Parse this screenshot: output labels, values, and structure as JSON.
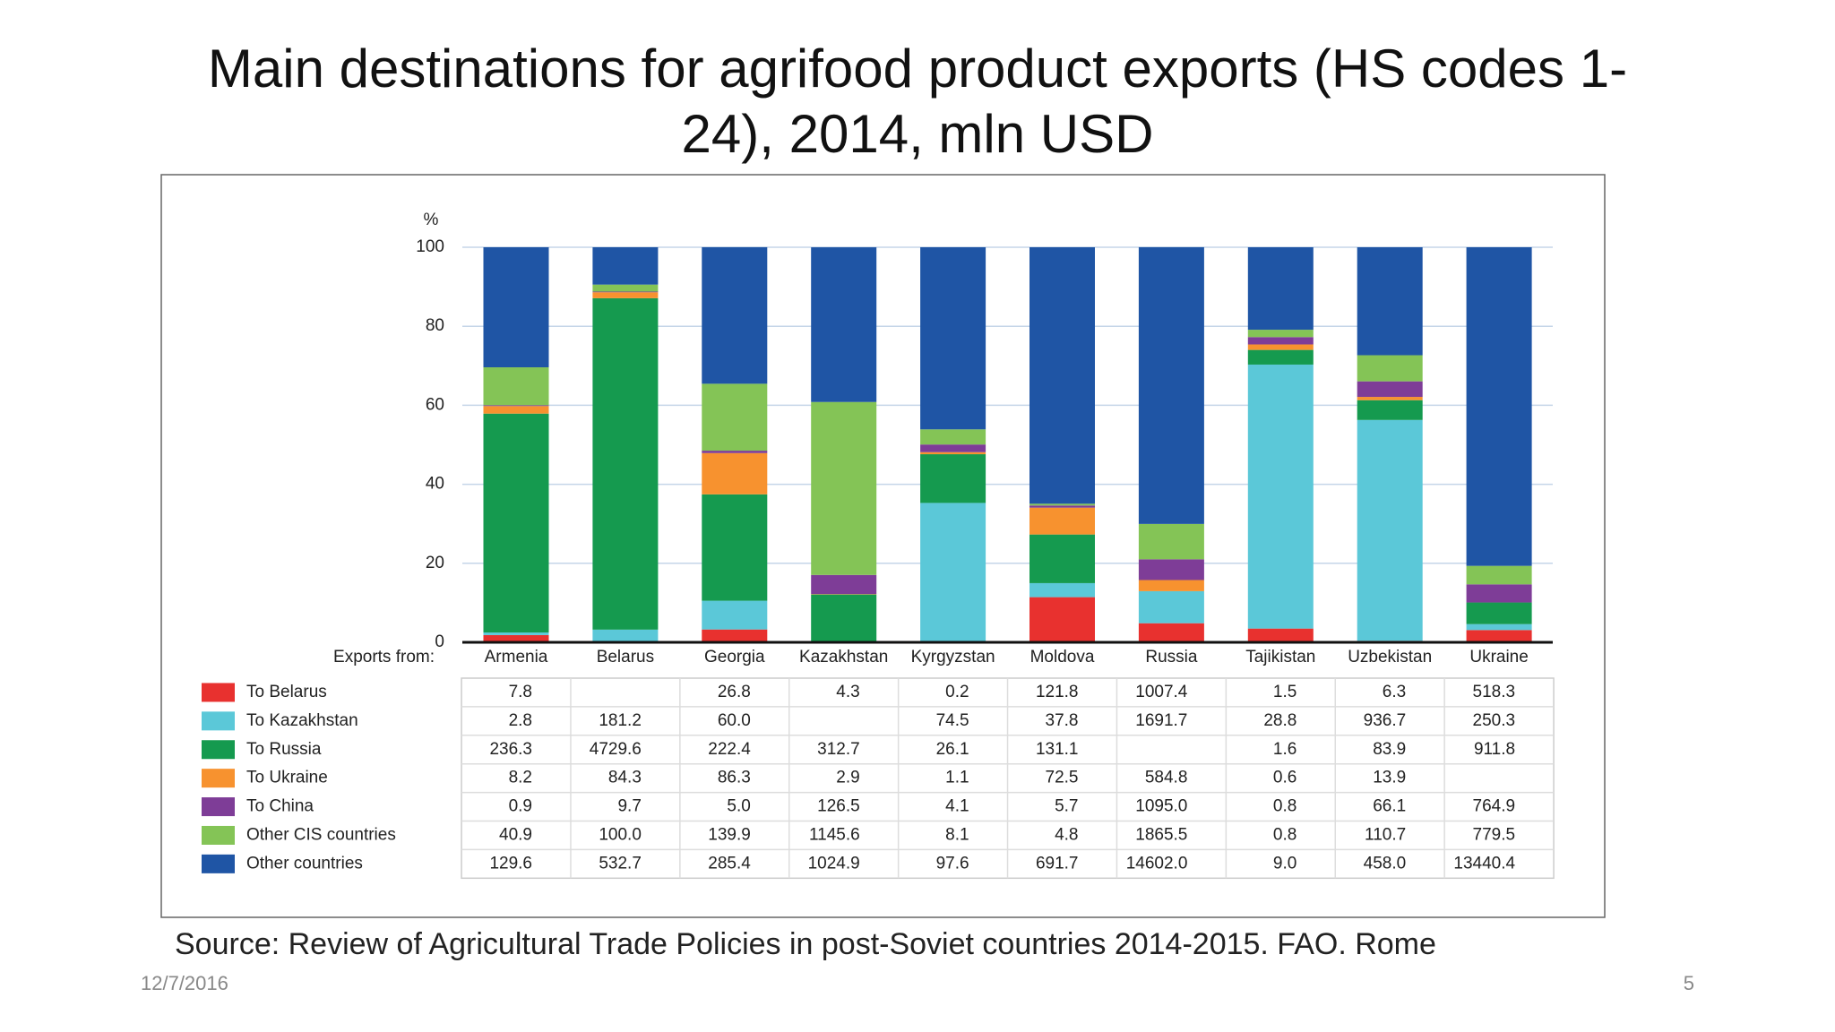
{
  "chart_data": {
    "type": "stacked_bar",
    "title": "Main destinations for agrifood product exports (HS codes 1-24), 2014, mln USD",
    "y_label": "%",
    "x_label": "Exports from:",
    "categories": [
      "Armenia",
      "Belarus",
      "Georgia",
      "Kazakhstan",
      "Kyrgyzstan",
      "Moldova",
      "Russia",
      "Tajikistan",
      "Uzbekistan",
      "Ukraine"
    ],
    "ylim": [
      0,
      100
    ],
    "yticks": [
      0,
      20,
      40,
      60,
      80,
      100
    ],
    "grid": true,
    "series": [
      {
        "name": "To Belarus",
        "color": "#e8312f",
        "values": [
          1.83,
          null,
          3.25,
          0.16,
          0.09,
          11.43,
          4.83,
          3.48,
          0.38,
          3.11
        ]
      },
      {
        "name": "To Kazakhstan",
        "color": "#5bc8d8",
        "values": [
          0.66,
          3.21,
          7.27,
          null,
          35.19,
          3.55,
          8.12,
          66.82,
          55.9,
          1.5
        ]
      },
      {
        "name": "To Russia",
        "color": "#159a4f",
        "values": [
          55.4,
          83.9,
          26.93,
          11.95,
          12.33,
          12.31,
          null,
          3.71,
          5.01,
          5.47
        ]
      },
      {
        "name": "To Ukraine",
        "color": "#f7922f",
        "values": [
          1.92,
          1.5,
          10.45,
          0.11,
          0.52,
          6.8,
          2.81,
          1.39,
          0.83,
          null
        ]
      },
      {
        "name": "To China",
        "color": "#7e3d97",
        "values": [
          0.21,
          0.17,
          0.61,
          4.83,
          1.94,
          0.54,
          5.25,
          1.86,
          3.94,
          4.59
        ]
      },
      {
        "name": "Other CIS countries",
        "color": "#84c456",
        "values": [
          9.59,
          1.77,
          16.94,
          43.78,
          3.83,
          0.45,
          8.95,
          1.86,
          6.61,
          4.68
        ]
      },
      {
        "name": "Other countries",
        "color": "#1f55a5",
        "values": [
          30.39,
          9.45,
          34.56,
          39.16,
          46.1,
          64.92,
          70.05,
          20.88,
          27.33,
          80.65
        ]
      }
    ]
  },
  "table": {
    "rows": [
      [
        "7.8",
        null,
        "26.8",
        "4.3",
        "0.2",
        "121.8",
        "1007.4",
        "1.5",
        "6.3",
        "518.3"
      ],
      [
        "2.8",
        "181.2",
        "60.0",
        null,
        "74.5",
        "37.8",
        "1691.7",
        "28.8",
        "936.7",
        "250.3"
      ],
      [
        "236.3",
        "4729.6",
        "222.4",
        "312.7",
        "26.1",
        "131.1",
        null,
        "1.6",
        "83.9",
        "911.8"
      ],
      [
        "8.2",
        "84.3",
        "86.3",
        "2.9",
        "1.1",
        "72.5",
        "584.8",
        "0.6",
        "13.9",
        null
      ],
      [
        "0.9",
        "9.7",
        "5.0",
        "126.5",
        "4.1",
        "5.7",
        "1095.0",
        "0.8",
        "66.1",
        "764.9"
      ],
      [
        "40.9",
        "100.0",
        "139.9",
        "1145.6",
        "8.1",
        "4.8",
        "1865.5",
        "0.8",
        "110.7",
        "779.5"
      ],
      [
        "129.6",
        "532.7",
        "285.4",
        "1024.9",
        "97.6",
        "691.7",
        "14602.0",
        "9.0",
        "458.0",
        "13440.4"
      ]
    ]
  },
  "slide": {
    "source": "Source: Review of Agricultural Trade Policies in post-Soviet countries 2014-2015. FAO. Rome",
    "date": "12/7/2016",
    "page": "5"
  }
}
